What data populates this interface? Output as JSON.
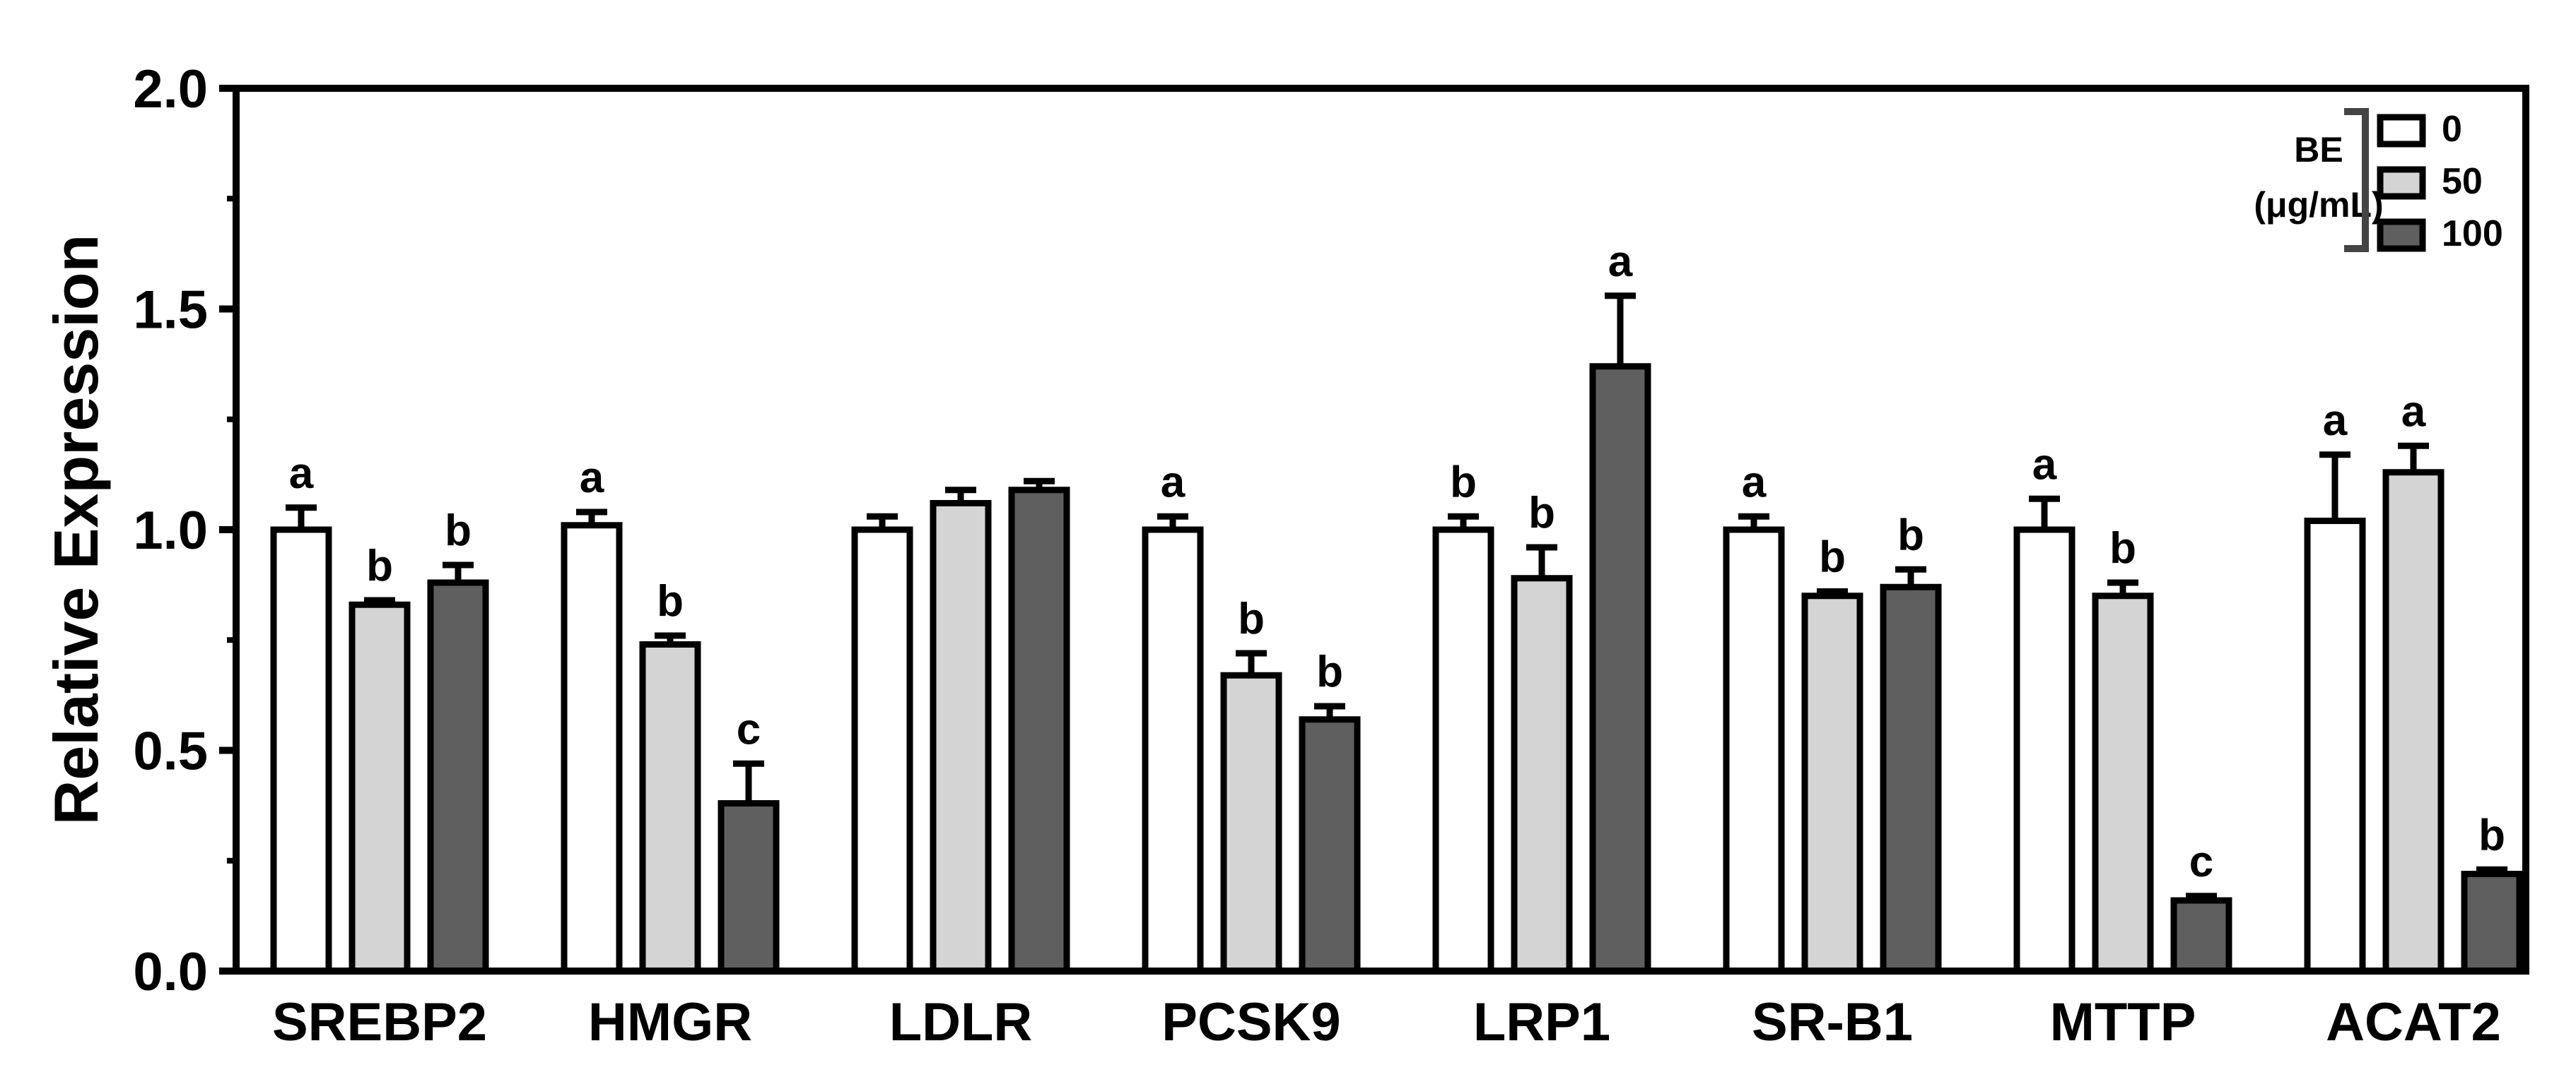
{
  "chart_data": {
    "type": "bar",
    "title": "",
    "xlabel": "",
    "ylabel": "Relative Expression",
    "ylim": [
      0,
      2.0
    ],
    "y_ticks": [
      "0.0",
      "0.5",
      "1.0",
      "1.5",
      "2.0"
    ],
    "grid": false,
    "legend_placement": "top-right",
    "legend_title_line1": "BE",
    "legend_title_line2": "(μg/mL)",
    "categories": [
      "SREBP2",
      "HMGR",
      "LDLR",
      "PCSK9",
      "LRP1",
      "SR-B1",
      "MTTP",
      "ACAT2"
    ],
    "series": [
      {
        "name": "0",
        "color": "#ffffff",
        "values": [
          1.0,
          1.01,
          1.0,
          1.0,
          1.0,
          1.0,
          1.0,
          1.02
        ],
        "errors": [
          0.05,
          0.03,
          0.03,
          0.03,
          0.03,
          0.03,
          0.07,
          0.15
        ],
        "letters": [
          "a",
          "a",
          "",
          "a",
          "b",
          "a",
          "a",
          "a"
        ]
      },
      {
        "name": "50",
        "color": "#d4d4d4",
        "values": [
          0.83,
          0.74,
          1.06,
          0.67,
          0.89,
          0.85,
          0.85,
          1.13
        ],
        "errors": [
          0.01,
          0.02,
          0.03,
          0.05,
          0.07,
          0.01,
          0.03,
          0.06
        ],
        "letters": [
          "b",
          "b",
          "",
          "b",
          "b",
          "b",
          "b",
          "a"
        ]
      },
      {
        "name": "100",
        "color": "#5f5f5f",
        "values": [
          0.88,
          0.38,
          1.09,
          0.57,
          1.37,
          0.87,
          0.16,
          0.22
        ],
        "errors": [
          0.04,
          0.09,
          0.02,
          0.03,
          0.16,
          0.04,
          0.01,
          0.01
        ],
        "letters": [
          "b",
          "c",
          "",
          "b",
          "a",
          "b",
          "c",
          "b"
        ]
      }
    ]
  }
}
